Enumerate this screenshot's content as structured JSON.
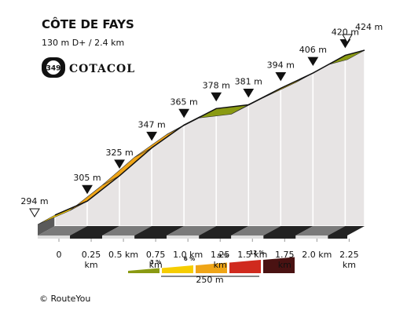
{
  "chart_data": {
    "type": "profile",
    "title": "CÔTE DE FAYS",
    "subtitle": "130 m D+ / 2.4 km",
    "badge": {
      "number": "349",
      "label": "COTACOL"
    },
    "footer": "© RouteYou",
    "x": [
      0,
      0.25,
      0.5,
      0.75,
      1.0,
      1.25,
      1.5,
      1.75,
      2.0,
      2.25,
      2.4
    ],
    "values": [
      294,
      305,
      325,
      347,
      365,
      378,
      381,
      394,
      406,
      420,
      424
    ],
    "value_labels": [
      "294 m",
      "305 m",
      "325 m",
      "347 m",
      "365 m",
      "378 m",
      "381 m",
      "394 m",
      "406 m",
      "420 m",
      "424 m"
    ],
    "segment_colors": [
      "#f6cd00",
      "#efa517",
      "#efa517",
      "#efa517",
      "#f6cd00",
      "#8a9a12",
      "#f6cd00",
      "#f6cd00",
      "#f6cd00",
      "#8a9a12"
    ],
    "xlim": [
      0,
      2.4
    ],
    "xticks": [
      0,
      {
        "value": 0.25,
        "label": "0.25 km"
      },
      {
        "value": 0.5,
        "label": "0.5 km"
      },
      {
        "value": 0.75,
        "label": "0.75 km"
      },
      {
        "value": 1.0,
        "label": "1.0 km"
      },
      {
        "value": 1.25,
        "label": "1.25 km"
      },
      {
        "value": 1.5,
        "label": "1.5 km"
      },
      {
        "value": 1.75,
        "label": "1.75 km"
      },
      {
        "value": 2.0,
        "label": "2.0 km"
      },
      {
        "value": 2.25,
        "label": "2.25 km"
      }
    ],
    "gradient_legend": {
      "colors": [
        "#8a9a12",
        "#f6cd00",
        "#efa517",
        "#d02a1e",
        "#4a1212"
      ],
      "thresholds": [
        {
          "value": 3,
          "label": "3 %"
        },
        {
          "value": 6,
          "label": "6 %"
        },
        {
          "value": 9,
          "label": "9 %"
        },
        {
          "value": 12,
          "label": "12 %"
        }
      ],
      "scale_label": "250 m"
    }
  }
}
